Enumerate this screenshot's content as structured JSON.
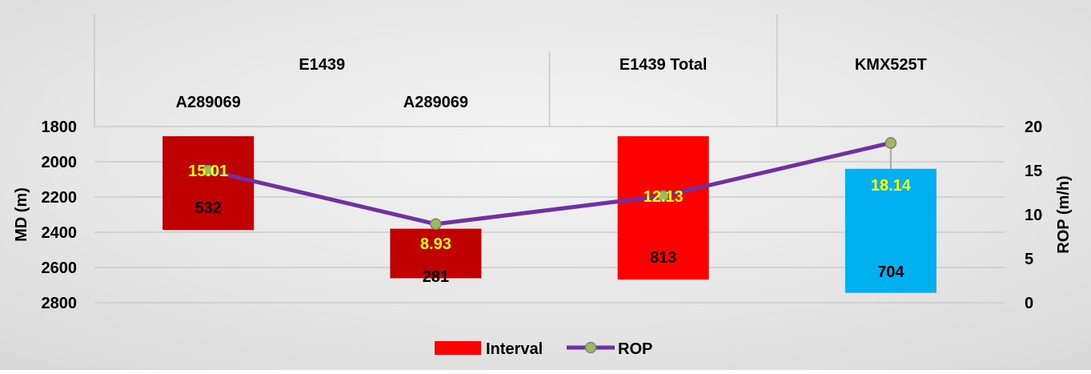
{
  "chart_data": {
    "type": "bar",
    "header_groups": [
      {
        "label": "E1439"
      },
      {
        "label": "E1439 Total"
      },
      {
        "label": "KMX525T"
      }
    ],
    "categories": [
      "A289069",
      "A289069",
      "",
      ""
    ],
    "bars": [
      {
        "top": 1855,
        "bottom": 2387,
        "interval": 532,
        "rop": 15.01,
        "color": "#c00000"
      },
      {
        "top": 2380,
        "bottom": 2661,
        "interval": 281,
        "rop": 8.93,
        "color": "#c00000"
      },
      {
        "top": 1855,
        "bottom": 2668,
        "interval": 813,
        "rop": 12.13,
        "color": "#ff0000"
      },
      {
        "top": 2040,
        "bottom": 2744,
        "interval": 704,
        "rop": 18.14,
        "color": "#00b0f0"
      }
    ],
    "ylabel_left": "MD (m)",
    "ylabel_right": "ROP (m/h)",
    "y_left": {
      "min": 1800,
      "max": 2800,
      "ticks": [
        1800,
        2000,
        2200,
        2400,
        2600,
        2800
      ],
      "inverted": true
    },
    "y_right": {
      "min": 0,
      "max": 20,
      "ticks": [
        0,
        5,
        10,
        15,
        20
      ]
    },
    "series": [
      {
        "name": "Interval",
        "color": "#ff0000"
      },
      {
        "name": "ROP",
        "color": "#7030a0",
        "marker_color": "#9bbb59",
        "values": [
          15.01,
          8.93,
          12.13,
          18.14
        ]
      }
    ],
    "legend_position": "bottom-center",
    "grid": true,
    "label_colors": {
      "rop": "#ffff00",
      "interval": "#000000",
      "axis": "#000000"
    }
  }
}
